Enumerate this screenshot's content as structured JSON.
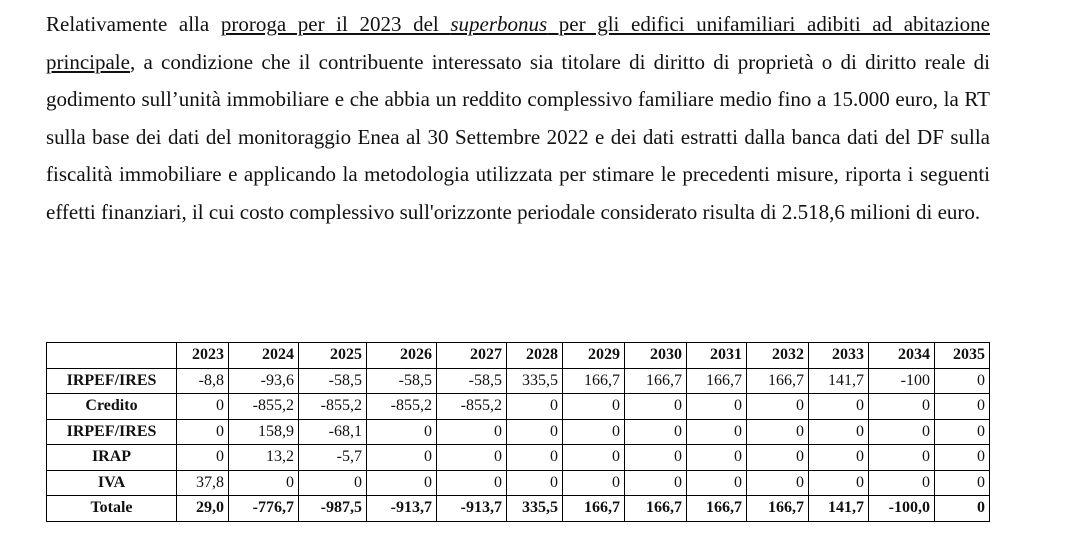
{
  "paragraph": {
    "intro": "Relativamente alla ",
    "underlined_start": "proroga per il 2023 del ",
    "underlined_italic": "superbonus",
    "underlined_end": " per gli edifici unifamiliari adibiti ad abitazione principale",
    "rest": ", a condizione che il contribuente interessato sia titolare di diritto di proprietà o di diritto reale di godimento sull’unità immobiliare e che abbia un reddito complessivo familiare medio fino a 15.000 euro, la RT sulla base dei dati del monitoraggio Enea al 30 Settembre 2022 e dei dati estratti dalla banca dati del DF sulla fiscalità immobiliare e applicando la metodologia utilizzata per stimare le precedenti misure, riporta i seguenti effetti finanziari, il cui costo complessivo sull'orizzonte periodale considerato risulta di 2.518,6 milioni di euro."
  },
  "table": {
    "header": [
      "2023",
      "2024",
      "2025",
      "2026",
      "2027",
      "2028",
      "2029",
      "2030",
      "2031",
      "2032",
      "2033",
      "2034",
      "2035"
    ],
    "rows": [
      {
        "label": "IRPEF/IRES",
        "cells": [
          "-8,8",
          "-93,6",
          "-58,5",
          "-58,5",
          "-58,5",
          "335,5",
          "166,7",
          "166,7",
          "166,7",
          "166,7",
          "141,7",
          "-100",
          "0"
        ]
      },
      {
        "label": "Credito",
        "cells": [
          "0",
          "-855,2",
          "-855,2",
          "-855,2",
          "-855,2",
          "0",
          "0",
          "0",
          "0",
          "0",
          "0",
          "0",
          "0"
        ]
      },
      {
        "label": "IRPEF/IRES",
        "cells": [
          "0",
          "158,9",
          "-68,1",
          "0",
          "0",
          "0",
          "0",
          "0",
          "0",
          "0",
          "0",
          "0",
          "0"
        ]
      },
      {
        "label": "IRAP",
        "cells": [
          "0",
          "13,2",
          "-5,7",
          "0",
          "0",
          "0",
          "0",
          "0",
          "0",
          "0",
          "0",
          "0",
          "0"
        ]
      },
      {
        "label": "IVA",
        "cells": [
          "37,8",
          "0",
          "0",
          "0",
          "0",
          "0",
          "0",
          "0",
          "0",
          "0",
          "0",
          "0",
          "0"
        ]
      },
      {
        "label": "Totale",
        "cells": [
          "29,0",
          "-776,7",
          "-987,5",
          "-913,7",
          "-913,7",
          "335,5",
          "166,7",
          "166,7",
          "166,7",
          "166,7",
          "141,7",
          "-100,0",
          "0"
        ]
      }
    ]
  }
}
